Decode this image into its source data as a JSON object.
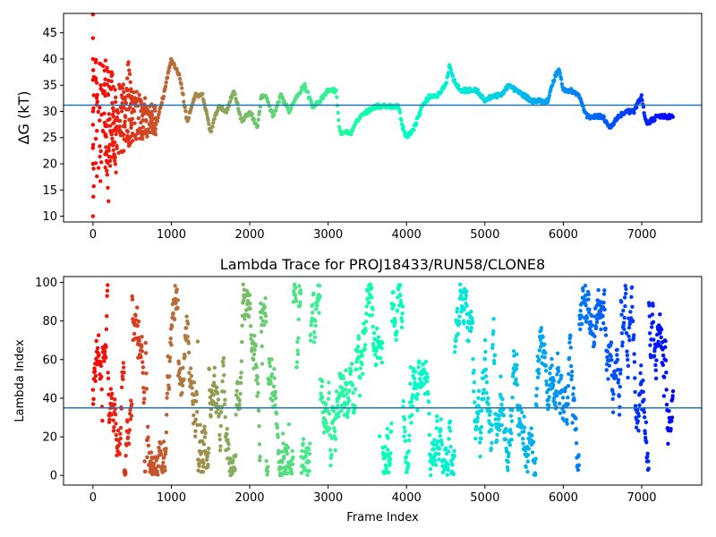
{
  "chart_data": [
    {
      "type": "scatter",
      "ylabel": "ΔG (kT)",
      "xlabel": "",
      "title": "",
      "xlim": [
        -375,
        7765
      ],
      "ylim": [
        8.9,
        48.7
      ],
      "xticks": [
        0,
        1000,
        2000,
        3000,
        4000,
        5000,
        6000,
        7000
      ],
      "yticks": [
        10,
        15,
        20,
        25,
        30,
        35,
        40,
        45
      ],
      "hline": 31.2,
      "hline_color": "#1f77b4",
      "colormap": "rainbow (red at frame 0 → violet at end)",
      "n_frames": 7400,
      "series_path": [
        [
          0,
          10
        ],
        [
          0,
          20
        ],
        [
          0,
          23
        ],
        [
          0,
          30
        ],
        [
          0,
          36
        ],
        [
          0,
          40
        ],
        [
          0,
          44
        ],
        [
          0,
          49
        ],
        [
          100,
          26
        ],
        [
          100,
          34
        ],
        [
          100,
          44
        ],
        [
          200,
          12
        ],
        [
          200,
          15
        ],
        [
          200,
          22
        ],
        [
          200,
          30
        ],
        [
          300,
          18
        ],
        [
          300,
          27
        ],
        [
          400,
          25
        ],
        [
          450,
          40
        ],
        [
          500,
          32
        ],
        [
          600,
          32
        ],
        [
          700,
          30
        ],
        [
          800,
          27
        ],
        [
          900,
          33
        ],
        [
          1000,
          40
        ],
        [
          1100,
          37
        ],
        [
          1150,
          33
        ],
        [
          1200,
          28
        ],
        [
          1300,
          33
        ],
        [
          1400,
          33
        ],
        [
          1500,
          26
        ],
        [
          1600,
          31
        ],
        [
          1700,
          30
        ],
        [
          1800,
          34
        ],
        [
          1900,
          28
        ],
        [
          2000,
          30
        ],
        [
          2100,
          27
        ],
        [
          2150,
          33
        ],
        [
          2200,
          33
        ],
        [
          2300,
          29
        ],
        [
          2400,
          33
        ],
        [
          2500,
          30
        ],
        [
          2600,
          33
        ],
        [
          2700,
          35
        ],
        [
          2800,
          31
        ],
        [
          2900,
          32
        ],
        [
          3000,
          34
        ],
        [
          3100,
          34
        ],
        [
          3150,
          26
        ],
        [
          3300,
          26
        ],
        [
          3400,
          29
        ],
        [
          3500,
          30
        ],
        [
          3600,
          31
        ],
        [
          3700,
          31
        ],
        [
          3800,
          31
        ],
        [
          3900,
          31
        ],
        [
          3950,
          27
        ],
        [
          4000,
          25
        ],
        [
          4100,
          27
        ],
        [
          4200,
          31
        ],
        [
          4300,
          33
        ],
        [
          4400,
          33
        ],
        [
          4500,
          35
        ],
        [
          4550,
          39
        ],
        [
          4600,
          36
        ],
        [
          4700,
          34
        ],
        [
          4800,
          34
        ],
        [
          4900,
          34
        ],
        [
          4950,
          33
        ],
        [
          5000,
          32
        ],
        [
          5100,
          33
        ],
        [
          5200,
          33
        ],
        [
          5300,
          35
        ],
        [
          5400,
          34
        ],
        [
          5500,
          33
        ],
        [
          5600,
          32
        ],
        [
          5700,
          32
        ],
        [
          5800,
          32
        ],
        [
          5900,
          37
        ],
        [
          5950,
          38
        ],
        [
          6000,
          34
        ],
        [
          6100,
          34
        ],
        [
          6200,
          33
        ],
        [
          6300,
          29
        ],
        [
          6400,
          29
        ],
        [
          6500,
          29
        ],
        [
          6550,
          28
        ],
        [
          6600,
          27
        ],
        [
          6700,
          29
        ],
        [
          6800,
          30
        ],
        [
          6900,
          30
        ],
        [
          7000,
          33
        ],
        [
          7050,
          28
        ],
        [
          7100,
          28
        ],
        [
          7200,
          29
        ],
        [
          7300,
          29
        ],
        [
          7400,
          29
        ]
      ]
    },
    {
      "type": "scatter",
      "title": "Lambda Trace for PROJ18433/RUN58/CLONE8",
      "xlabel": "Frame Index",
      "ylabel": "Lambda Index",
      "xlim": [
        -375,
        7765
      ],
      "ylim": [
        -5,
        103
      ],
      "xticks": [
        0,
        1000,
        2000,
        3000,
        4000,
        5000,
        6000,
        7000
      ],
      "yticks": [
        0,
        20,
        40,
        60,
        80,
        100
      ],
      "hline": 35,
      "hline_color": "#1f77b4",
      "colormap": "rainbow (red at frame 0 → violet at end)",
      "n_frames": 7400,
      "value_range": [
        0,
        99
      ]
    }
  ],
  "colors": {
    "axes": "#000000",
    "reference_line": "#1f77b4",
    "background": "#ffffff"
  }
}
